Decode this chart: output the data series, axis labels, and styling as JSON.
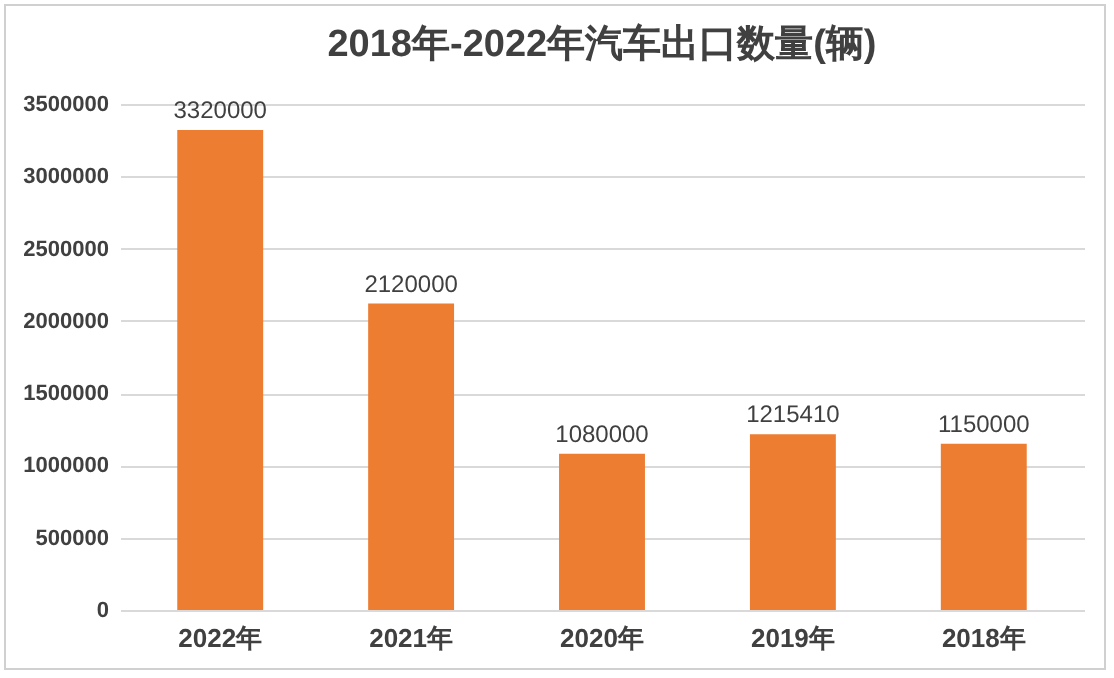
{
  "chart_data": {
    "type": "bar",
    "title": "2018年-2022年汽车出口数量(辆)",
    "categories": [
      "2022年",
      "2021年",
      "2020年",
      "2019年",
      "2018年"
    ],
    "values": [
      3320000,
      2120000,
      1080000,
      1215410,
      1150000
    ],
    "color": "#ed7d31",
    "ylim": [
      0,
      3500000
    ],
    "yticks": [
      0,
      500000,
      1000000,
      1500000,
      2000000,
      2500000,
      3000000,
      3500000
    ],
    "grid": "y",
    "data_labels": true
  }
}
